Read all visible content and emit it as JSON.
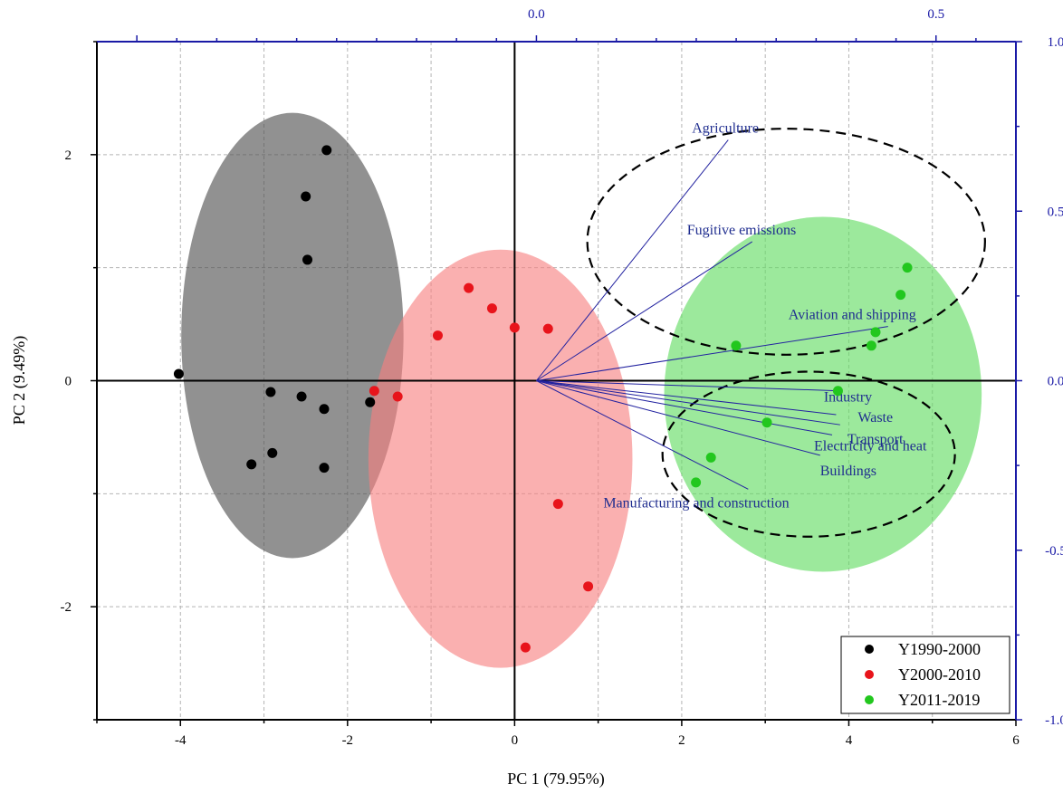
{
  "chart_data": {
    "type": "scatter",
    "xlabel": "PC 1 (79.95%)",
    "ylabel": "PC 2 (9.49%)",
    "xlim": [
      -5,
      6
    ],
    "ylim": [
      -3,
      3
    ],
    "x_ticks": [
      -4,
      -2,
      0,
      2,
      4,
      6
    ],
    "y_ticks": [
      -2,
      0,
      2
    ],
    "top_axis": {
      "lim": [
        -0.55,
        0.6
      ],
      "ticks": [
        0.0,
        0.5
      ],
      "tick_labels": [
        "0.0",
        "0.5"
      ]
    },
    "right_axis": {
      "lim": [
        -1.0,
        1.0
      ],
      "ticks": [
        -1.0,
        -0.5,
        0.0,
        0.5,
        1.0
      ],
      "tick_labels": [
        "-1.0",
        "-0.5",
        "0.0",
        "0.5",
        "1.0"
      ]
    },
    "grid": true,
    "legend_position": "bottom-right",
    "series": [
      {
        "name": "Y1990-2000",
        "color": "#000000",
        "points": [
          [
            -4.02,
            0.06
          ],
          [
            -2.25,
            2.04
          ],
          [
            -2.5,
            1.63
          ],
          [
            -2.48,
            1.07
          ],
          [
            -2.92,
            -0.1
          ],
          [
            -2.55,
            -0.14
          ],
          [
            -2.28,
            -0.25
          ],
          [
            -1.73,
            -0.19
          ],
          [
            -2.9,
            -0.64
          ],
          [
            -3.15,
            -0.74
          ],
          [
            -2.28,
            -0.77
          ]
        ]
      },
      {
        "name": "Y2000-2010",
        "color": "#e8141b",
        "points": [
          [
            -0.55,
            0.82
          ],
          [
            -0.27,
            0.64
          ],
          [
            0.0,
            0.47
          ],
          [
            0.4,
            0.46
          ],
          [
            -0.92,
            0.4
          ],
          [
            -1.68,
            -0.09
          ],
          [
            -1.4,
            -0.14
          ],
          [
            0.52,
            -1.09
          ],
          [
            0.88,
            -1.82
          ],
          [
            0.13,
            -2.36
          ]
        ]
      },
      {
        "name": "Y2011-2019",
        "color": "#22c71e",
        "points": [
          [
            4.7,
            1.0
          ],
          [
            4.62,
            0.76
          ],
          [
            4.32,
            0.43
          ],
          [
            2.65,
            0.31
          ],
          [
            4.27,
            0.31
          ],
          [
            3.87,
            -0.09
          ],
          [
            3.02,
            -0.37
          ],
          [
            2.35,
            -0.68
          ],
          [
            2.17,
            -0.9
          ]
        ]
      }
    ],
    "confidence_ellipses": [
      {
        "group": "Y1990-2000",
        "color": "#4d4d4d",
        "center": [
          -2.66,
          0.4
        ],
        "radius_x": 1.33,
        "radius_y": 1.97
      },
      {
        "group": "Y2000-2010",
        "color": "#f77f7f",
        "center": [
          -0.17,
          -0.69
        ],
        "radius_x": 1.58,
        "radius_y": 1.85
      },
      {
        "group": "Y2011-2019",
        "color": "#5fdc5f",
        "center": [
          3.69,
          -0.12
        ],
        "radius_x": 1.9,
        "radius_y": 1.57
      }
    ],
    "loadings": [
      {
        "label": "Agriculture",
        "pc1": 0.24,
        "pc2": 0.71
      },
      {
        "label": "Fugitive emissions",
        "pc1": 0.27,
        "pc2": 0.41
      },
      {
        "label": "Aviation and shipping",
        "pc1": 0.44,
        "pc2": 0.16
      },
      {
        "label": "Industry",
        "pc1": 0.38,
        "pc2": -0.03
      },
      {
        "label": "Waste",
        "pc1": 0.375,
        "pc2": -0.1
      },
      {
        "label": "Transport",
        "pc1": 0.38,
        "pc2": -0.13
      },
      {
        "label": "Electricity and heat",
        "pc1": 0.37,
        "pc2": -0.16
      },
      {
        "label": "Buildings",
        "pc1": 0.355,
        "pc2": -0.22
      },
      {
        "label": "Manufacturing and construction",
        "pc1": 0.265,
        "pc2": -0.32
      }
    ],
    "dashed_ellipses": [
      {
        "encloses": [
          "Agriculture",
          "Fugitive emissions",
          "Aviation and shipping"
        ],
        "center": [
          3.25,
          1.23
        ],
        "radius_x": 2.38,
        "radius_y": 1.0
      },
      {
        "encloses": [
          "Industry",
          "Waste",
          "Transport",
          "Electricity and heat",
          "Buildings",
          "Manufacturing and construction"
        ],
        "center": [
          3.52,
          -0.65
        ],
        "radius_x": 1.75,
        "radius_y": 0.73
      }
    ]
  }
}
